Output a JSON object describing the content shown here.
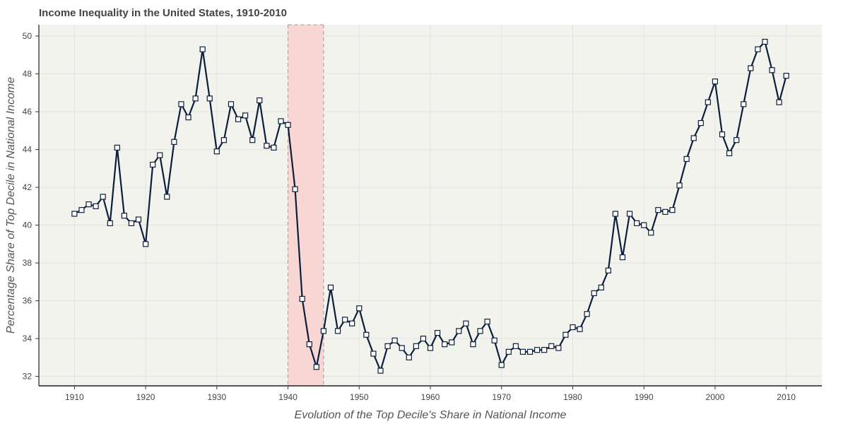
{
  "chart_data": {
    "type": "line",
    "title": "Income Inequality in the United States, 1910-2010",
    "xlabel": "Evolution of the Top Decile's Share in National Income",
    "ylabel": "Percentage Share of Top Decile in National Income",
    "xlim": [
      1905,
      2015
    ],
    "ylim": [
      31.5,
      50.6
    ],
    "xticks": [
      1910,
      1920,
      1930,
      1940,
      1950,
      1960,
      1970,
      1980,
      1990,
      2000,
      2010
    ],
    "yticks": [
      32,
      34,
      36,
      38,
      40,
      42,
      44,
      46,
      48,
      50
    ],
    "grid": true,
    "highlight_range": [
      1940,
      1945
    ],
    "colors": {
      "plot_background": "#f3f3ee",
      "line": "#0b1e3a",
      "marker_fill": "#ffffff",
      "highlight_fill": "#f8d3d0",
      "highlight_border": "#999999",
      "grid": "#e2e2e2"
    },
    "series": [
      {
        "x": [
          1910,
          1911,
          1912,
          1913,
          1914,
          1915,
          1916,
          1917,
          1918,
          1919,
          1920,
          1921,
          1922,
          1923,
          1924,
          1925,
          1926,
          1927,
          1928,
          1929,
          1930,
          1931,
          1932,
          1933,
          1934,
          1935,
          1936,
          1937,
          1938,
          1939,
          1940,
          1941,
          1942,
          1943,
          1944,
          1945,
          1946,
          1947,
          1948,
          1949,
          1950,
          1951,
          1952,
          1953,
          1954,
          1955,
          1956,
          1957,
          1958,
          1959,
          1960,
          1961,
          1962,
          1963,
          1964,
          1965,
          1966,
          1967,
          1968,
          1969,
          1970,
          1971,
          1972,
          1973,
          1974,
          1975,
          1976,
          1977,
          1978,
          1979,
          1980,
          1981,
          1982,
          1983,
          1984,
          1985,
          1986,
          1987,
          1988,
          1989,
          1990,
          1991,
          1992,
          1993,
          1994,
          1995,
          1996,
          1997,
          1998,
          1999,
          2000,
          2001,
          2002,
          2003,
          2004,
          2005,
          2006,
          2007,
          2008,
          2009,
          2010
        ],
        "values": [
          40.6,
          40.8,
          41.1,
          41.0,
          41.5,
          40.1,
          44.1,
          40.5,
          40.1,
          40.3,
          39.0,
          43.2,
          43.7,
          41.5,
          44.4,
          46.4,
          45.7,
          46.7,
          49.3,
          46.7,
          43.9,
          44.5,
          46.4,
          45.6,
          45.8,
          44.5,
          46.6,
          44.2,
          44.1,
          45.5,
          45.3,
          41.9,
          36.1,
          33.7,
          32.5,
          34.4,
          36.7,
          34.4,
          35.0,
          34.8,
          35.6,
          34.2,
          33.2,
          32.3,
          33.6,
          33.9,
          33.5,
          33.0,
          33.6,
          34.0,
          33.5,
          34.3,
          33.7,
          33.8,
          34.4,
          34.8,
          33.7,
          34.4,
          34.9,
          33.9,
          32.6,
          33.3,
          33.6,
          33.3,
          33.3,
          33.4,
          33.4,
          33.6,
          33.5,
          34.2,
          34.6,
          34.5,
          35.3,
          36.4,
          36.7,
          37.6,
          40.6,
          38.3,
          40.6,
          40.1,
          40.0,
          39.6,
          40.8,
          40.7,
          40.8,
          42.1,
          43.5,
          44.6,
          45.4,
          46.5,
          47.6,
          44.8,
          43.8,
          44.5,
          46.4,
          48.3,
          49.3,
          49.7,
          48.2,
          46.5,
          47.9
        ]
      }
    ]
  }
}
